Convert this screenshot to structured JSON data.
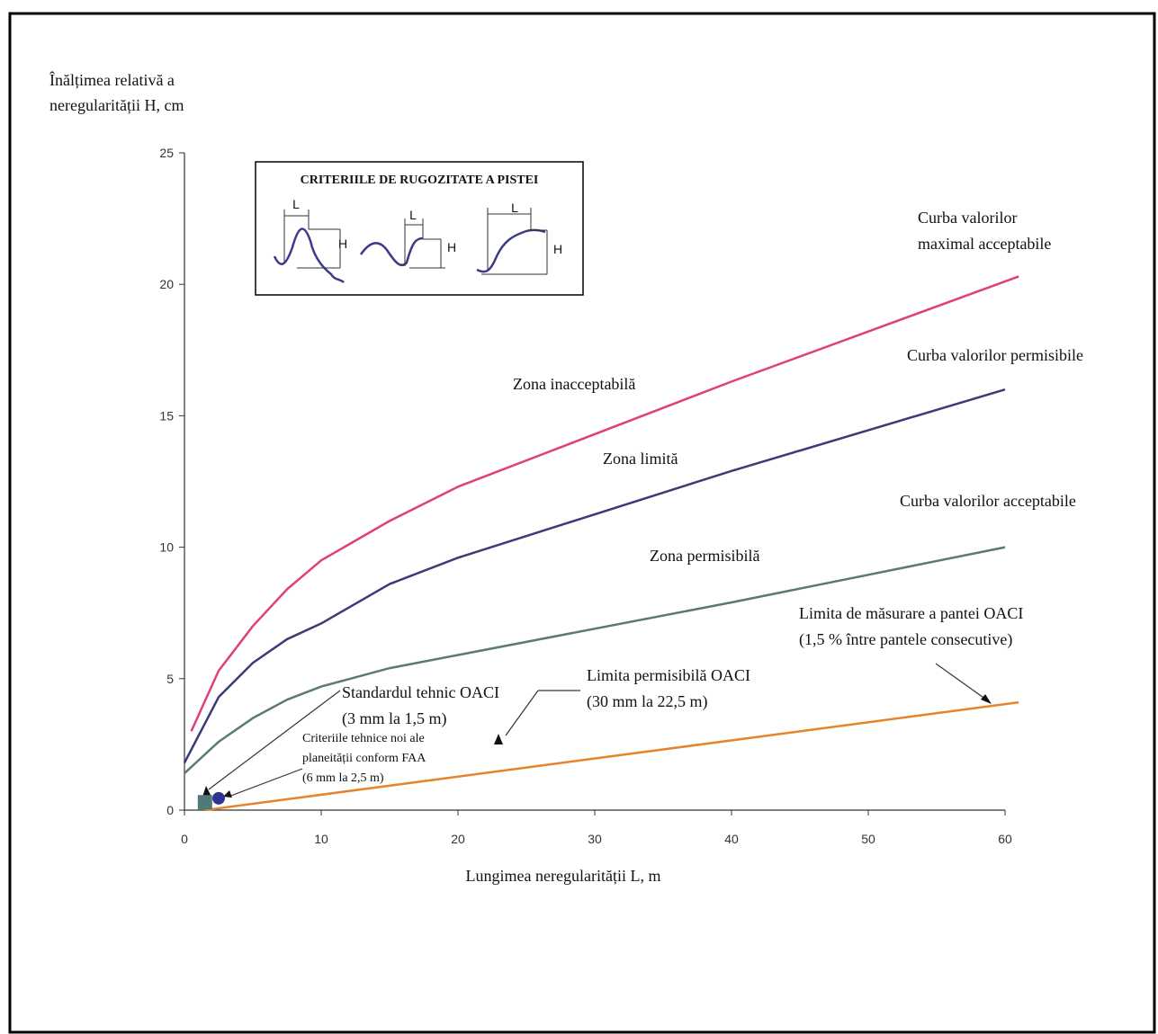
{
  "chart_data": {
    "type": "line",
    "y_label_lines": [
      "Înălțimea relativă a",
      "neregularității H, cm"
    ],
    "x_label": "Lungimea neregularității L, m",
    "xlim": [
      0,
      60
    ],
    "xticks": [
      0,
      10,
      20,
      30,
      40,
      50,
      60
    ],
    "ylim": [
      0,
      25
    ],
    "yticks": [
      0,
      5,
      10,
      15,
      20,
      25
    ],
    "series": [
      {
        "color": "#e0407a",
        "x": [
          0.5,
          2.5,
          5,
          7.5,
          10,
          15,
          20,
          40,
          61
        ],
        "values": [
          3.0,
          5.3,
          7.0,
          8.4,
          9.5,
          11.0,
          12.3,
          16.3,
          20.3
        ]
      },
      {
        "color": "#3b3b7a",
        "x": [
          0,
          2.5,
          5,
          7.5,
          10,
          15,
          20,
          40,
          60
        ],
        "values": [
          1.8,
          4.3,
          5.6,
          6.5,
          7.1,
          8.6,
          9.6,
          12.9,
          16.0
        ]
      },
      {
        "color": "#5a7a74",
        "x": [
          0,
          2.5,
          5,
          7.5,
          10,
          15,
          20,
          40,
          60
        ],
        "values": [
          1.4,
          2.6,
          3.5,
          4.2,
          4.7,
          5.4,
          5.9,
          7.9,
          10.0
        ]
      },
      {
        "color": "#e8832a",
        "x": [
          1.5,
          61
        ],
        "values": [
          0,
          4.1
        ]
      }
    ],
    "points": [
      {
        "shape": "square",
        "color": "#4f7a78",
        "x": 1.5,
        "value": 0.3
      },
      {
        "shape": "circle",
        "color": "#2e3590",
        "x": 2.5,
        "value": 0.45
      }
    ],
    "annotations": [
      {
        "lines": [
          "Curba valorilor",
          "maximal acceptabile"
        ]
      },
      {
        "lines": [
          "Curba valorilor permisibile"
        ]
      },
      {
        "lines": [
          "Zona inacceptabilă"
        ]
      },
      {
        "lines": [
          "Zona limită"
        ]
      },
      {
        "lines": [
          "Curba valorilor acceptabile"
        ]
      },
      {
        "lines": [
          "Zona permisibilă"
        ]
      },
      {
        "lines": [
          "Limita de măsurare a pantei OACI",
          "(1,5 % între pantele consecutive)"
        ]
      },
      {
        "lines": [
          "Limita permisibilă OACI",
          "(30 mm la 22,5 m)"
        ]
      },
      {
        "lines": [
          "Standardul tehnic OACI",
          "(3 mm la 1,5 m)"
        ]
      },
      {
        "lines": [
          "Criteriile tehnice noi ale",
          "planeității conform FAA",
          "(6 mm la 2,5 m)"
        ]
      }
    ],
    "inset": {
      "title": "CRITERIILE DE RUGOZITATE A PISTEI",
      "labels": [
        "L",
        "H",
        "L",
        "H",
        "L",
        "H"
      ]
    }
  }
}
